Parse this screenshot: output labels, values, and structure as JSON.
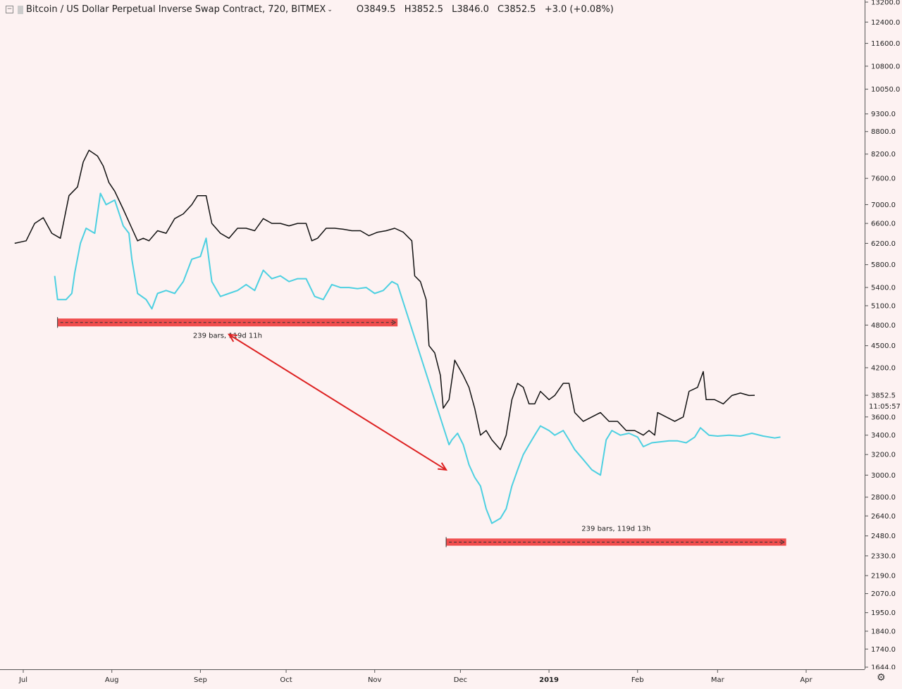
{
  "legend": {
    "symbol": "Bitcoin / US Dollar Perpetual Inverse Swap Contract, 720, BITMEX",
    "open": "O3849.5",
    "high": "H3852.5",
    "low": "L3846.0",
    "close": "C3852.5",
    "change": "+3.0 (+0.08%)"
  },
  "chart_data": {
    "type": "line",
    "title": "",
    "xlabel": "",
    "ylabel": "",
    "y_scale": "log",
    "ylim": [
      1644,
      13200
    ],
    "x_ticks": [
      "Jul",
      "Aug",
      "Sep",
      "Oct",
      "Nov",
      "Dec",
      "2019",
      "Feb",
      "Mar",
      "Apr"
    ],
    "y_ticks": [
      "13200.0",
      "12400.0",
      "11600.0",
      "10800.0",
      "10050.0",
      "9300.0",
      "8800.0",
      "8200.0",
      "7600.0",
      "7000.0",
      "6600.0",
      "6200.0",
      "5800.0",
      "5400.0",
      "5100.0",
      "4800.0",
      "4500.0",
      "4200.0",
      "3852.5",
      "3600.0",
      "3400.0",
      "3200.0",
      "3000.0",
      "2800.0",
      "2640.0",
      "2480.0",
      "2330.0",
      "2190.0",
      "2070.0",
      "1950.0",
      "1840.0",
      "1740.0",
      "1644.0"
    ],
    "last_price": "3852.5",
    "countdown": "11:05:57",
    "series": [
      {
        "color": "#111111",
        "points": [
          [
            "2018-06-28",
            6200
          ],
          [
            "2018-07-02",
            6250
          ],
          [
            "2018-07-05",
            6600
          ],
          [
            "2018-07-08",
            6720
          ],
          [
            "2018-07-11",
            6400
          ],
          [
            "2018-07-14",
            6300
          ],
          [
            "2018-07-17",
            7200
          ],
          [
            "2018-07-20",
            7400
          ],
          [
            "2018-07-22",
            8000
          ],
          [
            "2018-07-24",
            8300
          ],
          [
            "2018-07-27",
            8150
          ],
          [
            "2018-07-29",
            7900
          ],
          [
            "2018-07-31",
            7500
          ],
          [
            "2018-08-02",
            7300
          ],
          [
            "2018-08-05",
            6900
          ],
          [
            "2018-08-08",
            6500
          ],
          [
            "2018-08-10",
            6250
          ],
          [
            "2018-08-12",
            6300
          ],
          [
            "2018-08-14",
            6250
          ],
          [
            "2018-08-17",
            6450
          ],
          [
            "2018-08-20",
            6400
          ],
          [
            "2018-08-23",
            6700
          ],
          [
            "2018-08-26",
            6800
          ],
          [
            "2018-08-29",
            7000
          ],
          [
            "2018-08-31",
            7200
          ],
          [
            "2018-09-03",
            7200
          ],
          [
            "2018-09-05",
            6600
          ],
          [
            "2018-09-08",
            6400
          ],
          [
            "2018-09-11",
            6300
          ],
          [
            "2018-09-14",
            6500
          ],
          [
            "2018-09-17",
            6500
          ],
          [
            "2018-09-20",
            6450
          ],
          [
            "2018-09-23",
            6700
          ],
          [
            "2018-09-26",
            6600
          ],
          [
            "2018-09-29",
            6600
          ],
          [
            "2018-10-02",
            6550
          ],
          [
            "2018-10-05",
            6600
          ],
          [
            "2018-10-08",
            6600
          ],
          [
            "2018-10-10",
            6250
          ],
          [
            "2018-10-12",
            6300
          ],
          [
            "2018-10-15",
            6500
          ],
          [
            "2018-10-18",
            6500
          ],
          [
            "2018-10-21",
            6480
          ],
          [
            "2018-10-24",
            6450
          ],
          [
            "2018-10-27",
            6450
          ],
          [
            "2018-10-30",
            6350
          ],
          [
            "2018-11-02",
            6420
          ],
          [
            "2018-11-05",
            6450
          ],
          [
            "2018-11-08",
            6500
          ],
          [
            "2018-11-11",
            6420
          ],
          [
            "2018-11-14",
            6250
          ],
          [
            "2018-11-15",
            5600
          ],
          [
            "2018-11-17",
            5500
          ],
          [
            "2018-11-19",
            5200
          ],
          [
            "2018-11-20",
            4500
          ],
          [
            "2018-11-22",
            4400
          ],
          [
            "2018-11-24",
            4100
          ],
          [
            "2018-11-25",
            3700
          ],
          [
            "2018-11-27",
            3800
          ],
          [
            "2018-11-29",
            4300
          ],
          [
            "2018-12-02",
            4100
          ],
          [
            "2018-12-04",
            3950
          ],
          [
            "2018-12-06",
            3700
          ],
          [
            "2018-12-08",
            3400
          ],
          [
            "2018-12-10",
            3450
          ],
          [
            "2018-12-12",
            3350
          ],
          [
            "2018-12-15",
            3250
          ],
          [
            "2018-12-17",
            3400
          ],
          [
            "2018-12-19",
            3800
          ],
          [
            "2018-12-21",
            4000
          ],
          [
            "2018-12-23",
            3950
          ],
          [
            "2018-12-25",
            3750
          ],
          [
            "2018-12-27",
            3750
          ],
          [
            "2018-12-29",
            3900
          ],
          [
            "2019-01-01",
            3800
          ],
          [
            "2019-01-03",
            3850
          ],
          [
            "2019-01-06",
            4000
          ],
          [
            "2019-01-08",
            4000
          ],
          [
            "2019-01-10",
            3650
          ],
          [
            "2019-01-13",
            3550
          ],
          [
            "2019-01-16",
            3600
          ],
          [
            "2019-01-19",
            3650
          ],
          [
            "2019-01-22",
            3550
          ],
          [
            "2019-01-25",
            3550
          ],
          [
            "2019-01-28",
            3450
          ],
          [
            "2019-01-31",
            3450
          ],
          [
            "2019-02-03",
            3400
          ],
          [
            "2019-02-05",
            3450
          ],
          [
            "2019-02-07",
            3400
          ],
          [
            "2019-02-08",
            3650
          ],
          [
            "2019-02-11",
            3600
          ],
          [
            "2019-02-14",
            3550
          ],
          [
            "2019-02-17",
            3600
          ],
          [
            "2019-02-19",
            3900
          ],
          [
            "2019-02-22",
            3950
          ],
          [
            "2019-02-24",
            4150
          ],
          [
            "2019-02-25",
            3800
          ],
          [
            "2019-02-28",
            3800
          ],
          [
            "2019-03-03",
            3750
          ],
          [
            "2019-03-06",
            3850
          ],
          [
            "2019-03-09",
            3880
          ],
          [
            "2019-03-12",
            3850
          ],
          [
            "2019-03-14",
            3852.5
          ]
        ]
      },
      {
        "color": "#4dd0e1",
        "points": [
          [
            "2018-07-12",
            5600
          ],
          [
            "2018-07-13",
            5200
          ],
          [
            "2018-07-16",
            5200
          ],
          [
            "2018-07-18",
            5300
          ],
          [
            "2018-07-19",
            5650
          ],
          [
            "2018-07-21",
            6200
          ],
          [
            "2018-07-23",
            6500
          ],
          [
            "2018-07-26",
            6400
          ],
          [
            "2018-07-28",
            7250
          ],
          [
            "2018-07-30",
            7000
          ],
          [
            "2018-08-02",
            7100
          ],
          [
            "2018-08-05",
            6550
          ],
          [
            "2018-08-07",
            6400
          ],
          [
            "2018-08-08",
            5900
          ],
          [
            "2018-08-10",
            5300
          ],
          [
            "2018-08-13",
            5200
          ],
          [
            "2018-08-15",
            5050
          ],
          [
            "2018-08-17",
            5300
          ],
          [
            "2018-08-20",
            5350
          ],
          [
            "2018-08-23",
            5300
          ],
          [
            "2018-08-26",
            5500
          ],
          [
            "2018-08-29",
            5900
          ],
          [
            "2018-09-01",
            5950
          ],
          [
            "2018-09-03",
            6300
          ],
          [
            "2018-09-05",
            5500
          ],
          [
            "2018-09-08",
            5250
          ],
          [
            "2018-09-11",
            5300
          ],
          [
            "2018-09-14",
            5350
          ],
          [
            "2018-09-17",
            5450
          ],
          [
            "2018-09-20",
            5350
          ],
          [
            "2018-09-23",
            5700
          ],
          [
            "2018-09-26",
            5550
          ],
          [
            "2018-09-29",
            5600
          ],
          [
            "2018-10-02",
            5500
          ],
          [
            "2018-10-05",
            5550
          ],
          [
            "2018-10-08",
            5550
          ],
          [
            "2018-10-11",
            5250
          ],
          [
            "2018-10-14",
            5200
          ],
          [
            "2018-10-17",
            5450
          ],
          [
            "2018-10-20",
            5400
          ],
          [
            "2018-10-23",
            5400
          ],
          [
            "2018-10-26",
            5380
          ],
          [
            "2018-10-29",
            5400
          ],
          [
            "2018-11-01",
            5300
          ],
          [
            "2018-11-04",
            5350
          ],
          [
            "2018-11-07",
            5500
          ],
          [
            "2018-11-09",
            5450
          ],
          [
            "2018-11-27",
            3300
          ],
          [
            "2018-11-28",
            3350
          ],
          [
            "2018-11-30",
            3420
          ],
          [
            "2018-12-02",
            3300
          ],
          [
            "2018-12-04",
            3100
          ],
          [
            "2018-12-06",
            2980
          ],
          [
            "2018-12-08",
            2900
          ],
          [
            "2018-12-10",
            2700
          ],
          [
            "2018-12-12",
            2580
          ],
          [
            "2018-12-15",
            2620
          ],
          [
            "2018-12-17",
            2700
          ],
          [
            "2018-12-19",
            2900
          ],
          [
            "2018-12-21",
            3050
          ],
          [
            "2018-12-23",
            3200
          ],
          [
            "2018-12-25",
            3300
          ],
          [
            "2018-12-27",
            3400
          ],
          [
            "2018-12-29",
            3500
          ],
          [
            "2019-01-01",
            3450
          ],
          [
            "2019-01-03",
            3400
          ],
          [
            "2019-01-06",
            3450
          ],
          [
            "2019-01-08",
            3350
          ],
          [
            "2019-01-10",
            3250
          ],
          [
            "2019-01-13",
            3150
          ],
          [
            "2019-01-16",
            3050
          ],
          [
            "2019-01-19",
            3000
          ],
          [
            "2019-01-21",
            3350
          ],
          [
            "2019-01-23",
            3450
          ],
          [
            "2019-01-26",
            3400
          ],
          [
            "2019-01-29",
            3420
          ],
          [
            "2019-02-01",
            3380
          ],
          [
            "2019-02-03",
            3280
          ],
          [
            "2019-02-06",
            3320
          ],
          [
            "2019-02-09",
            3330
          ],
          [
            "2019-02-12",
            3340
          ],
          [
            "2019-02-15",
            3340
          ],
          [
            "2019-02-18",
            3320
          ],
          [
            "2019-02-21",
            3380
          ],
          [
            "2019-02-23",
            3480
          ],
          [
            "2019-02-26",
            3400
          ],
          [
            "2019-03-01",
            3390
          ],
          [
            "2019-03-05",
            3400
          ],
          [
            "2019-03-09",
            3390
          ],
          [
            "2019-03-13",
            3420
          ],
          [
            "2019-03-17",
            3390
          ],
          [
            "2019-03-21",
            3370
          ],
          [
            "2019-03-23",
            3380
          ]
        ]
      }
    ],
    "annotations": [
      {
        "type": "date_range",
        "label": "239 bars, 119d 11h",
        "color": "#ef4444",
        "from": "2018-07-13",
        "to": "2018-11-09",
        "price_band": [
          4780,
          4900
        ]
      },
      {
        "type": "date_range",
        "label": "239 bars, 119d 13h",
        "color": "#ef4444",
        "from": "2018-11-26",
        "to": "2019-03-25",
        "price_band": [
          2405,
          2460
        ]
      },
      {
        "type": "arrow",
        "color": "#dd2222",
        "from": [
          "2018-09-11",
          4660
        ],
        "to": [
          "2018-11-26",
          3050
        ],
        "bidirectional": true
      }
    ]
  }
}
